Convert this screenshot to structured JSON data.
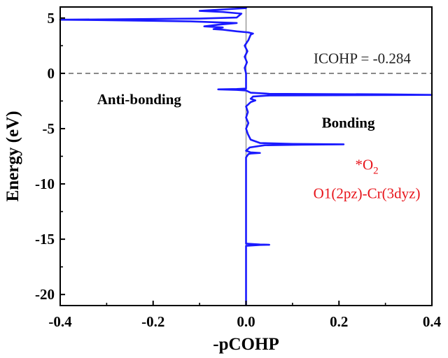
{
  "chart_data": {
    "type": "line",
    "xlabel": "-pCOHP",
    "ylabel": "Energy (eV)",
    "xlim": [
      -0.4,
      0.4
    ],
    "ylim": [
      -21,
      6
    ],
    "xticks": [
      -0.4,
      -0.2,
      0.0,
      0.2,
      0.4
    ],
    "xtick_labels": [
      "-0.4",
      "-0.2",
      "0.0",
      "0.2",
      "0.4"
    ],
    "yticks": [
      5,
      0,
      -5,
      -10,
      -15,
      -20
    ],
    "ytick_labels": [
      "5",
      "0",
      "-5",
      "-10",
      "-15",
      "-20"
    ],
    "grid": false,
    "reference_lines": [
      {
        "axis": "y",
        "value": 0,
        "style": "dashed",
        "color": "#555555"
      },
      {
        "axis": "x",
        "value": 0,
        "style": "solid",
        "color": "#888888"
      }
    ],
    "series": [
      {
        "color": "#1a1aff",
        "points": [
          [
            0,
            -21
          ],
          [
            0,
            -15.6
          ],
          [
            0.03,
            -15.52
          ],
          [
            0.05,
            -15.5
          ],
          [
            0.03,
            -15.48
          ],
          [
            0,
            -15.4
          ],
          [
            0,
            -7.6
          ],
          [
            0.005,
            -7.3
          ],
          [
            0.01,
            -7.25
          ],
          [
            0.03,
            -7.2
          ],
          [
            0.01,
            -7.15
          ],
          [
            0,
            -7.0
          ],
          [
            0.008,
            -6.7
          ],
          [
            0.04,
            -6.5
          ],
          [
            0.12,
            -6.45
          ],
          [
            0.21,
            -6.42
          ],
          [
            0.1,
            -6.38
          ],
          [
            0.03,
            -6.3
          ],
          [
            0.01,
            -6.0
          ],
          [
            0.004,
            -5.5
          ],
          [
            0,
            -5.0
          ],
          [
            0.005,
            -4.5
          ],
          [
            0,
            -4.0
          ],
          [
            0.004,
            -3.5
          ],
          [
            0,
            -3.0
          ],
          [
            0.01,
            -2.6
          ],
          [
            0.02,
            -2.45
          ],
          [
            0.01,
            -2.3
          ],
          [
            0.015,
            -2.1
          ],
          [
            0.05,
            -2.0
          ],
          [
            0.4,
            -1.95
          ],
          [
            0.3,
            -1.9
          ],
          [
            0.05,
            -1.85
          ],
          [
            0.01,
            -1.75
          ],
          [
            0,
            -1.55
          ],
          [
            -0.02,
            -1.5
          ],
          [
            -0.06,
            -1.45
          ],
          [
            -0.02,
            -1.42
          ],
          [
            0,
            -1.38
          ],
          [
            0,
            0
          ],
          [
            -0.003,
            0.5
          ],
          [
            0.002,
            1
          ],
          [
            -0.003,
            1.5
          ],
          [
            0.003,
            2
          ],
          [
            -0.003,
            2.5
          ],
          [
            0.005,
            3.0
          ],
          [
            0.01,
            3.5
          ],
          [
            0.015,
            3.6
          ],
          [
            0.005,
            3.7
          ],
          [
            -0.02,
            3.8
          ],
          [
            -0.05,
            3.95
          ],
          [
            -0.07,
            4.0
          ],
          [
            -0.05,
            4.15
          ],
          [
            -0.09,
            4.25
          ],
          [
            -0.06,
            4.4
          ],
          [
            -0.02,
            4.55
          ],
          [
            -0.12,
            4.7
          ],
          [
            -0.25,
            4.78
          ],
          [
            -0.32,
            4.82
          ],
          [
            -0.4,
            4.85
          ],
          [
            -0.25,
            4.9
          ],
          [
            -0.1,
            4.95
          ],
          [
            -0.02,
            5.05
          ],
          [
            -0.01,
            5.4
          ],
          [
            -0.05,
            5.55
          ],
          [
            -0.1,
            5.65
          ],
          [
            -0.06,
            5.75
          ],
          [
            -0.02,
            5.85
          ],
          [
            0,
            5.9
          ],
          [
            0,
            6
          ]
        ]
      }
    ],
    "annotations": [
      {
        "text": "ICOHP = -0.284",
        "x": 0.25,
        "y": 0.9,
        "style": "plain"
      },
      {
        "text": "Anti-bonding",
        "x": -0.23,
        "y": -2.8,
        "style": "bold"
      },
      {
        "text": "Bonding",
        "x": 0.22,
        "y": -4.9,
        "style": "bold"
      },
      {
        "text": "*O2",
        "x": 0.26,
        "y": -8.7,
        "style": "red"
      },
      {
        "text": "O1(2pz)-Cr(3dyz)",
        "x": 0.26,
        "y": -11.3,
        "style": "red"
      }
    ]
  }
}
